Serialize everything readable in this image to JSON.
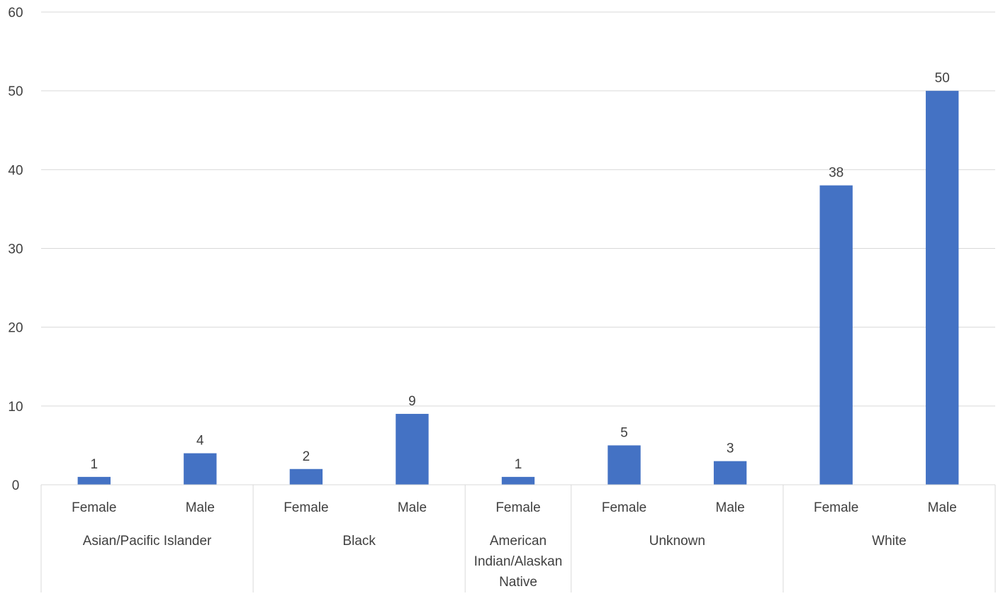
{
  "chart_data": {
    "type": "bar",
    "title": "",
    "xlabel": "",
    "ylabel": "",
    "ylim": [
      0,
      60
    ],
    "y_ticks": [
      "0",
      "10",
      "20",
      "30",
      "40",
      "50",
      "60"
    ],
    "grid": true,
    "legend": "none",
    "bar_color": "#4472C4",
    "groups": [
      {
        "label": "Asian/Pacific Islander",
        "label_lines": [
          "Asian/Pacific Islander"
        ],
        "categories": [
          "Female",
          "Male"
        ],
        "values": [
          1,
          4
        ]
      },
      {
        "label": "Black",
        "label_lines": [
          "Black"
        ],
        "categories": [
          "Female",
          "Male"
        ],
        "values": [
          2,
          9
        ]
      },
      {
        "label": "American Indian/Alaskan Native",
        "label_lines": [
          "American",
          "Indian/Alaskan",
          "Native"
        ],
        "categories": [
          "Female"
        ],
        "values": [
          1
        ]
      },
      {
        "label": "Unknown",
        "label_lines": [
          "Unknown"
        ],
        "categories": [
          "Female",
          "Male"
        ],
        "values": [
          5,
          3
        ]
      },
      {
        "label": "White",
        "label_lines": [
          "White"
        ],
        "categories": [
          "Female",
          "Male"
        ],
        "values": [
          38,
          50
        ]
      }
    ]
  }
}
